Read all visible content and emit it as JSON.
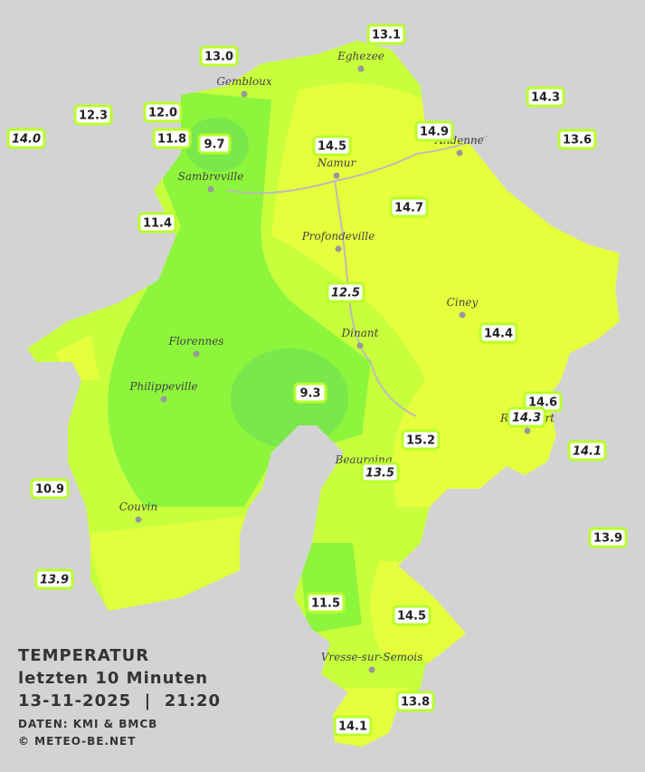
{
  "legend": {
    "title": "TEMPERATUR",
    "subtitle": "letzten 10 Minuten",
    "datetime": "13-11-2025  |  21:20",
    "source": "DATEN: KMI & BMCB",
    "copyright": "© METEO-BE.NET"
  },
  "towns": [
    "Eghezee",
    "Gembloux",
    "Andenne",
    "Namur",
    "Sambreville",
    "Profondeville",
    "Ciney",
    "Dinant",
    "Florennes",
    "Philippeville",
    "Rochefort",
    "Beauraing",
    "Couvin",
    "Vresse-sur-Semois"
  ],
  "stations": [
    {
      "value": "13.1",
      "italic": false
    },
    {
      "value": "13.0",
      "italic": false
    },
    {
      "value": "14.3",
      "italic": false
    },
    {
      "value": "12.3",
      "italic": false
    },
    {
      "value": "12.0",
      "italic": false
    },
    {
      "value": "14.0",
      "italic": true
    },
    {
      "value": "11.8",
      "italic": false
    },
    {
      "value": "9.7",
      "italic": false
    },
    {
      "value": "14.9",
      "italic": false
    },
    {
      "value": "13.6",
      "italic": false
    },
    {
      "value": "14.5",
      "italic": false
    },
    {
      "value": "14.7",
      "italic": false
    },
    {
      "value": "11.4",
      "italic": false
    },
    {
      "value": "12.5",
      "italic": true
    },
    {
      "value": "14.4",
      "italic": false
    },
    {
      "value": "9.3",
      "italic": false
    },
    {
      "value": "14.6",
      "italic": false
    },
    {
      "value": "14.3",
      "italic": true
    },
    {
      "value": "15.2",
      "italic": false
    },
    {
      "value": "14.1",
      "italic": true
    },
    {
      "value": "13.5",
      "italic": true
    },
    {
      "value": "10.9",
      "italic": false
    },
    {
      "value": "13.9",
      "italic": false
    },
    {
      "value": "13.9",
      "italic": true
    },
    {
      "value": "11.5",
      "italic": false
    },
    {
      "value": "14.5",
      "italic": false
    },
    {
      "value": "13.8",
      "italic": false
    },
    {
      "value": "14.1",
      "italic": false
    }
  ]
}
